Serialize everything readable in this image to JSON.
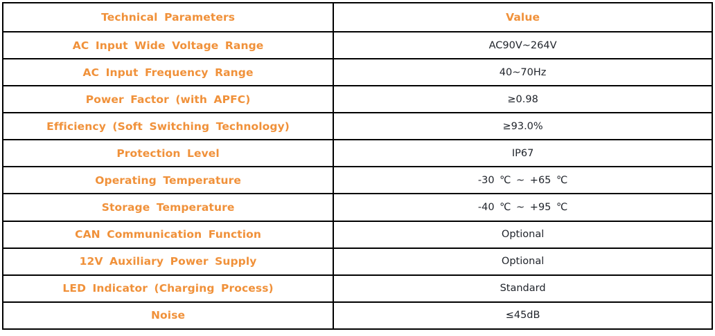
{
  "table": {
    "accent_color": "#F0913A",
    "value_text_color": "#20242B",
    "border_color": "#000000",
    "header": {
      "param": "Technical Parameters",
      "value": "Value"
    },
    "rows": [
      {
        "param": "AC Input Wide Voltage Range",
        "value": "AC90V~264V"
      },
      {
        "param": "AC Input Frequency Range",
        "value": "40~70Hz"
      },
      {
        "param": "Power Factor (with APFC)",
        "value": "≥0.98"
      },
      {
        "param": "Efficiency (Soft Switching Technology)",
        "value": "≥93.0%"
      },
      {
        "param": "Protection Level",
        "value": "IP67"
      },
      {
        "param": "Operating Temperature",
        "value": "-30 ℃ ~ +65 ℃"
      },
      {
        "param": "Storage Temperature",
        "value": "-40 ℃ ~ +95 ℃"
      },
      {
        "param": "CAN Communication Function",
        "value": "Optional"
      },
      {
        "param": "12V Auxiliary Power Supply",
        "value": "Optional"
      },
      {
        "param": "LED Indicator (Charging Process)",
        "value": "Standard"
      },
      {
        "param": "Noise",
        "value": "≤45dB"
      }
    ]
  }
}
